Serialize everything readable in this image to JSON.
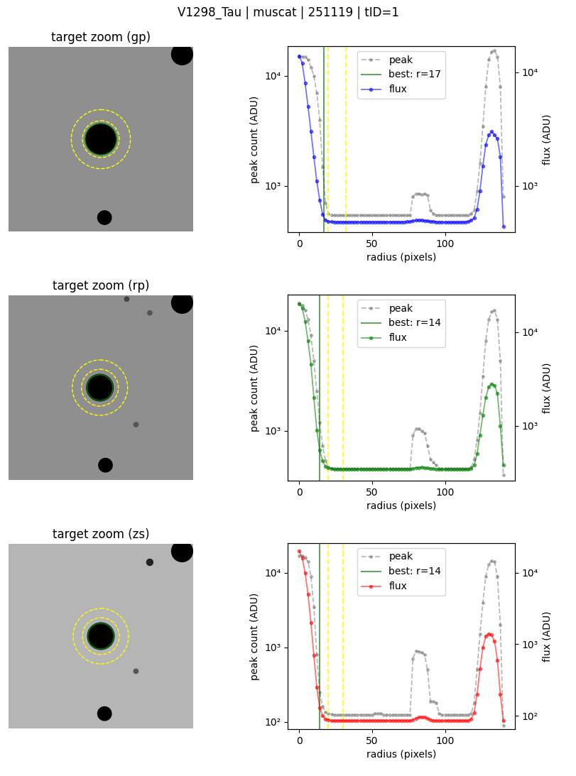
{
  "suptitle": "V1298_Tau | muscat | 251119 | tID=1",
  "chart_data": [
    {
      "type": "image",
      "title": "target zoom (gp)",
      "tick_labels": false,
      "xlim": [
        0,
        200
      ],
      "ylim": [
        200,
        0
      ],
      "background": "#8f8f8f",
      "stars": [
        {
          "x": 100,
          "y": 100,
          "r": 17,
          "color": "black"
        },
        {
          "x": 104,
          "y": 185,
          "r": 8,
          "color": "black"
        },
        {
          "x": 188,
          "y": 8,
          "r": 12,
          "color": "black"
        }
      ],
      "apertures": [
        {
          "x": 100,
          "y": 100,
          "r": 17,
          "color": "green",
          "line_style": "solid"
        },
        {
          "x": 100,
          "y": 100,
          "r": 20,
          "color": "yellow",
          "line_style": "dashed"
        },
        {
          "x": 100,
          "y": 100,
          "r": 32,
          "color": "yellow",
          "line_style": "dashed"
        }
      ]
    },
    {
      "type": "line",
      "xlabel": "radius (pixels)",
      "ylabel": "peak count (ADU)",
      "y2label": "flux (ADU)",
      "log": "y",
      "legend": "upper center",
      "xlim": [
        -8,
        148
      ],
      "xticks": [
        0,
        50,
        100
      ],
      "ylim": [
        380,
        18600
      ],
      "yticks": [
        {
          "value": 1000,
          "label": "10³"
        },
        {
          "value": 10000,
          "label": "10⁴"
        }
      ],
      "y2lim": [
        390,
        17000
      ],
      "y2ticks": [
        {
          "value": 1000,
          "label": "10³"
        },
        {
          "value": 10000,
          "label": "10⁴"
        }
      ],
      "x": [
        0,
        2,
        4,
        6,
        8,
        10,
        12,
        14,
        16,
        18,
        20,
        22,
        24,
        26,
        28,
        30,
        32,
        34,
        36,
        38,
        40,
        42,
        44,
        46,
        48,
        50,
        52,
        54,
        56,
        58,
        60,
        62,
        64,
        66,
        68,
        70,
        72,
        74,
        76,
        78,
        80,
        82,
        84,
        86,
        88,
        90,
        92,
        94,
        96,
        98,
        100,
        102,
        104,
        106,
        108,
        110,
        112,
        114,
        116,
        118,
        120,
        122,
        124,
        126,
        128,
        130,
        132,
        134,
        136,
        138,
        140
      ],
      "series": [
        {
          "name": "peak",
          "color": "gray",
          "line_style": "dashed",
          "marker": "circle",
          "values": [
            15000,
            15000,
            14800,
            14000,
            12000,
            10000,
            7000,
            4000,
            1500,
            700,
            560,
            545,
            540,
            540,
            540,
            540,
            540,
            540,
            540,
            540,
            540,
            540,
            540,
            540,
            540,
            540,
            540,
            540,
            540,
            540,
            540,
            540,
            540,
            540,
            540,
            540,
            540,
            540,
            540,
            800,
            850,
            850,
            830,
            850,
            820,
            600,
            560,
            545,
            540,
            540,
            540,
            540,
            540,
            540,
            540,
            540,
            540,
            540,
            540,
            560,
            600,
            900,
            1600,
            3500,
            8000,
            14000,
            16500,
            17000,
            15000,
            8000,
            800
          ]
        },
        {
          "name": "flux",
          "color": "blue",
          "line_style": "solid",
          "marker": "circle",
          "axis": "y2",
          "values": [
            14000,
            12000,
            8000,
            5000,
            3000,
            1800,
            1100,
            750,
            560,
            500,
            485,
            482,
            480,
            480,
            480,
            480,
            480,
            480,
            480,
            480,
            480,
            480,
            480,
            480,
            480,
            480,
            480,
            480,
            480,
            480,
            480,
            480,
            480,
            480,
            480,
            480,
            480,
            482,
            485,
            490,
            495,
            495,
            495,
            493,
            490,
            487,
            484,
            480,
            480,
            480,
            478,
            478,
            478,
            478,
            478,
            478,
            480,
            480,
            485,
            495,
            520,
            620,
            900,
            1500,
            2300,
            2800,
            3000,
            2800,
            2600,
            1800,
            440
          ]
        }
      ],
      "vlines": [
        {
          "name": "best: r=17",
          "x": 17,
          "color": "darkgreen",
          "line_style": "solid"
        },
        {
          "x": 20,
          "color": "yellow",
          "line_style": "dashed"
        },
        {
          "x": 32,
          "color": "yellow",
          "line_style": "dashed"
        }
      ]
    },
    {
      "type": "image",
      "title": "target zoom (rp)",
      "tick_labels": false,
      "xlim": [
        0,
        200
      ],
      "ylim": [
        200,
        0
      ],
      "background": "#8f8f8f",
      "stars": [
        {
          "x": 99,
          "y": 100,
          "r": 15,
          "color": "black"
        },
        {
          "x": 105,
          "y": 184,
          "r": 8,
          "color": "black"
        },
        {
          "x": 188,
          "y": 8,
          "r": 12,
          "color": "black"
        },
        {
          "x": 128,
          "y": 4,
          "r": 3,
          "color": "#444444"
        },
        {
          "x": 153,
          "y": 19,
          "r": 3,
          "color": "#555555"
        },
        {
          "x": 138,
          "y": 140,
          "r": 3,
          "color": "#555555"
        }
      ],
      "apertures": [
        {
          "x": 99,
          "y": 100,
          "r": 14,
          "color": "green",
          "line_style": "solid"
        },
        {
          "x": 99,
          "y": 100,
          "r": 20,
          "color": "yellow",
          "line_style": "dashed"
        },
        {
          "x": 99,
          "y": 100,
          "r": 30,
          "color": "yellow",
          "line_style": "dashed"
        }
      ]
    },
    {
      "type": "line",
      "xlabel": "radius (pixels)",
      "ylabel": "peak count (ADU)",
      "y2label": "flux (ADU)",
      "log": "y",
      "legend": "upper center",
      "xlim": [
        -8,
        148
      ],
      "xticks": [
        0,
        50,
        100
      ],
      "ylim": [
        316,
        23000
      ],
      "yticks": [
        {
          "value": 1000,
          "label": "10³"
        },
        {
          "value": 10000,
          "label": "10⁴"
        }
      ],
      "y2lim": [
        260,
        25000
      ],
      "y2ticks": [
        {
          "value": 1000,
          "label": "10³"
        },
        {
          "value": 10000,
          "label": "10⁴"
        }
      ],
      "x": [
        0,
        2,
        4,
        6,
        8,
        10,
        12,
        14,
        16,
        18,
        20,
        22,
        24,
        26,
        28,
        30,
        32,
        34,
        36,
        38,
        40,
        42,
        44,
        46,
        48,
        50,
        52,
        54,
        56,
        58,
        60,
        62,
        64,
        66,
        68,
        70,
        72,
        74,
        76,
        78,
        80,
        82,
        84,
        86,
        88,
        90,
        92,
        94,
        96,
        98,
        100,
        102,
        104,
        106,
        108,
        110,
        112,
        114,
        116,
        118,
        120,
        122,
        124,
        126,
        128,
        130,
        132,
        134,
        136,
        138,
        140
      ],
      "series": [
        {
          "name": "peak",
          "color": "gray",
          "line_style": "dashed",
          "marker": "circle",
          "values": [
            19000,
            18000,
            16000,
            13000,
            9000,
            5000,
            2500,
            1200,
            700,
            500,
            430,
            420,
            415,
            415,
            415,
            415,
            415,
            415,
            415,
            415,
            415,
            415,
            415,
            415,
            415,
            415,
            415,
            415,
            415,
            415,
            415,
            415,
            415,
            415,
            415,
            415,
            415,
            415,
            415,
            900,
            1050,
            1050,
            1000,
            950,
            700,
            520,
            480,
            450,
            420,
            415,
            415,
            415,
            415,
            415,
            415,
            415,
            415,
            415,
            415,
            430,
            520,
            800,
            1500,
            3500,
            8000,
            13000,
            15500,
            16000,
            13000,
            5000,
            360
          ]
        },
        {
          "name": "flux",
          "color": "green",
          "line_style": "solid",
          "marker": "circle",
          "axis": "y2",
          "values": [
            20000,
            18000,
            13000,
            8000,
            4500,
            2000,
            900,
            550,
            420,
            370,
            355,
            350,
            345,
            345,
            345,
            345,
            345,
            345,
            345,
            345,
            345,
            345,
            345,
            345,
            345,
            345,
            345,
            345,
            345,
            345,
            345,
            345,
            345,
            345,
            345,
            345,
            345,
            345,
            345,
            350,
            355,
            358,
            360,
            358,
            355,
            350,
            348,
            345,
            345,
            345,
            345,
            345,
            345,
            345,
            345,
            345,
            345,
            345,
            345,
            350,
            380,
            500,
            800,
            1300,
            2000,
            2600,
            2800,
            2700,
            2200,
            1000,
            380
          ]
        }
      ],
      "vlines": [
        {
          "name": "best: r=14",
          "x": 14,
          "color": "darkgreen",
          "line_style": "solid"
        },
        {
          "x": 20,
          "color": "yellow",
          "line_style": "dashed"
        },
        {
          "x": 30,
          "color": "yellow",
          "line_style": "dashed"
        }
      ]
    },
    {
      "type": "image",
      "title": "target zoom (zs)",
      "tick_labels": false,
      "xlim": [
        0,
        200
      ],
      "ylim": [
        200,
        0
      ],
      "background": "#b5b5b5",
      "stars": [
        {
          "x": 100,
          "y": 100,
          "r": 15,
          "color": "black"
        },
        {
          "x": 104,
          "y": 184,
          "r": 8,
          "color": "black"
        },
        {
          "x": 188,
          "y": 8,
          "r": 12,
          "color": "black"
        },
        {
          "x": 153,
          "y": 20,
          "r": 4,
          "color": "#222222"
        },
        {
          "x": 138,
          "y": 138,
          "r": 3,
          "color": "#555555"
        }
      ],
      "apertures": [
        {
          "x": 100,
          "y": 100,
          "r": 14,
          "color": "green",
          "line_style": "solid"
        },
        {
          "x": 100,
          "y": 100,
          "r": 20,
          "color": "yellow",
          "line_style": "dashed"
        },
        {
          "x": 100,
          "y": 100,
          "r": 30,
          "color": "yellow",
          "line_style": "dashed"
        }
      ]
    },
    {
      "type": "line",
      "xlabel": "radius (pixels)",
      "ylabel": "peak count (ADU)",
      "y2label": "flux (ADU)",
      "log": "y",
      "legend": "upper center",
      "xlim": [
        -8,
        148
      ],
      "xticks": [
        0,
        50,
        100
      ],
      "ylim": [
        80,
        25000
      ],
      "yticks": [
        {
          "value": 100,
          "label": "10²"
        },
        {
          "value": 1000,
          "label": "10³"
        },
        {
          "value": 10000,
          "label": "10⁴"
        }
      ],
      "y2lim": [
        65,
        26000
      ],
      "y2ticks": [
        {
          "value": 100,
          "label": "10²"
        },
        {
          "value": 1000,
          "label": "10³"
        },
        {
          "value": 10000,
          "label": "10⁴"
        }
      ],
      "x": [
        0,
        2,
        4,
        6,
        8,
        10,
        12,
        14,
        16,
        18,
        20,
        22,
        24,
        26,
        28,
        30,
        32,
        34,
        36,
        38,
        40,
        42,
        44,
        46,
        48,
        50,
        52,
        54,
        56,
        58,
        60,
        62,
        64,
        66,
        68,
        70,
        72,
        74,
        76,
        78,
        80,
        82,
        84,
        86,
        88,
        90,
        92,
        94,
        96,
        98,
        100,
        102,
        104,
        106,
        108,
        110,
        112,
        114,
        116,
        118,
        120,
        122,
        124,
        126,
        128,
        130,
        132,
        134,
        136,
        138,
        140
      ],
      "series": [
        {
          "name": "peak",
          "color": "gray",
          "line_style": "dashed",
          "marker": "circle",
          "values": [
            17000,
            17000,
            16000,
            14000,
            9000,
            3500,
            800,
            250,
            160,
            135,
            130,
            128,
            125,
            125,
            125,
            125,
            125,
            125,
            125,
            125,
            125,
            125,
            125,
            125,
            125,
            125,
            130,
            130,
            130,
            125,
            125,
            125,
            125,
            125,
            125,
            125,
            125,
            125,
            125,
            700,
            900,
            880,
            850,
            800,
            500,
            190,
            190,
            180,
            130,
            125,
            125,
            125,
            125,
            125,
            125,
            125,
            125,
            125,
            125,
            130,
            180,
            500,
            1500,
            4000,
            9000,
            13000,
            14500,
            14000,
            9000,
            2000,
            90
          ]
        },
        {
          "name": "flux",
          "color": "red",
          "line_style": "solid",
          "marker": "circle",
          "axis": "y2",
          "values": [
            20000,
            16000,
            10000,
            5000,
            2000,
            700,
            250,
            130,
            100,
            90,
            88,
            86,
            85,
            85,
            85,
            85,
            85,
            85,
            85,
            85,
            85,
            85,
            85,
            85,
            85,
            85,
            85,
            85,
            85,
            85,
            85,
            85,
            85,
            85,
            85,
            85,
            85,
            85,
            85,
            88,
            92,
            95,
            96,
            95,
            92,
            88,
            86,
            85,
            85,
            85,
            85,
            85,
            85,
            85,
            85,
            85,
            85,
            85,
            85,
            90,
            110,
            200,
            450,
            900,
            1300,
            1400,
            1350,
            1100,
            600,
            200,
            85
          ]
        }
      ],
      "vlines": [
        {
          "name": "best: r=14",
          "x": 14,
          "color": "darkgreen",
          "line_style": "solid"
        },
        {
          "x": 20,
          "color": "yellow",
          "line_style": "dashed"
        },
        {
          "x": 30,
          "color": "yellow",
          "line_style": "dashed"
        }
      ]
    }
  ]
}
